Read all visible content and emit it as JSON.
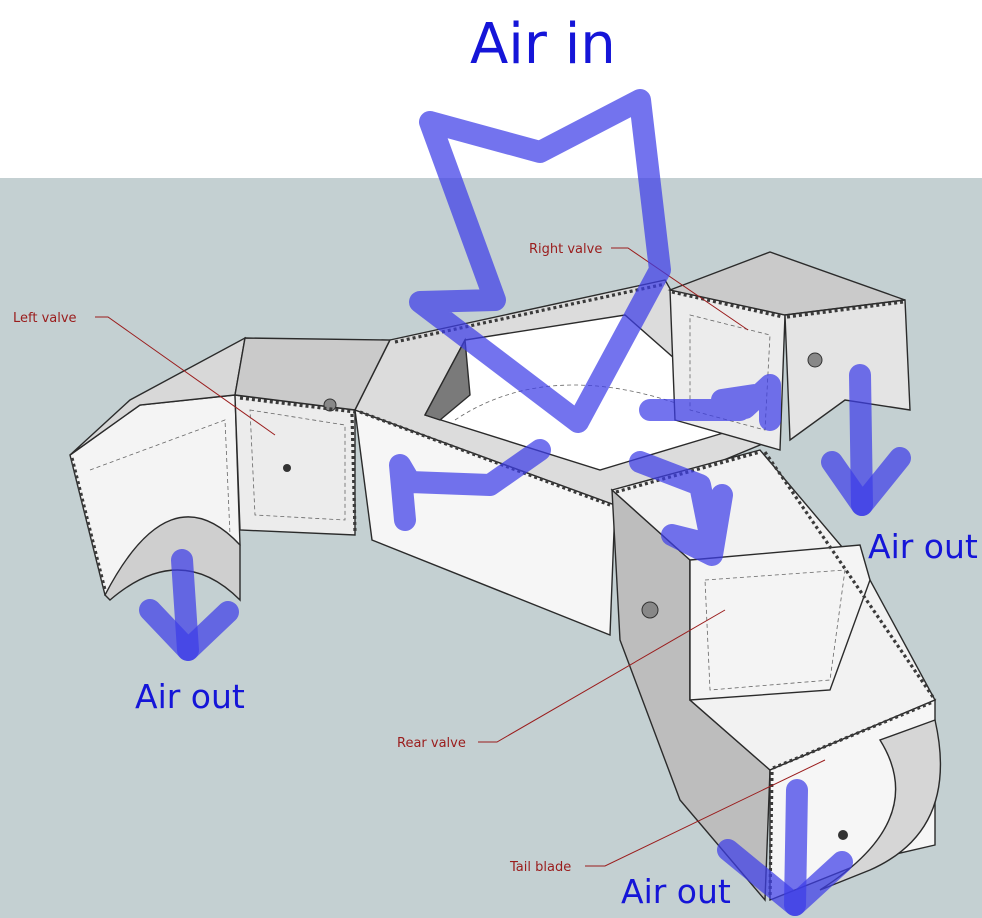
{
  "diagram": {
    "title": "Air in",
    "outlets": [
      "Air out",
      "Air out",
      "Air out"
    ],
    "callouts": [
      "Left valve",
      "Right valve",
      "Rear valve",
      "Tail blade"
    ],
    "colors": {
      "background_panel": "#c4d0d2",
      "arrow": "#3d3de8",
      "callout_text": "#9a1c1c",
      "label_text": "#1515d8"
    }
  }
}
